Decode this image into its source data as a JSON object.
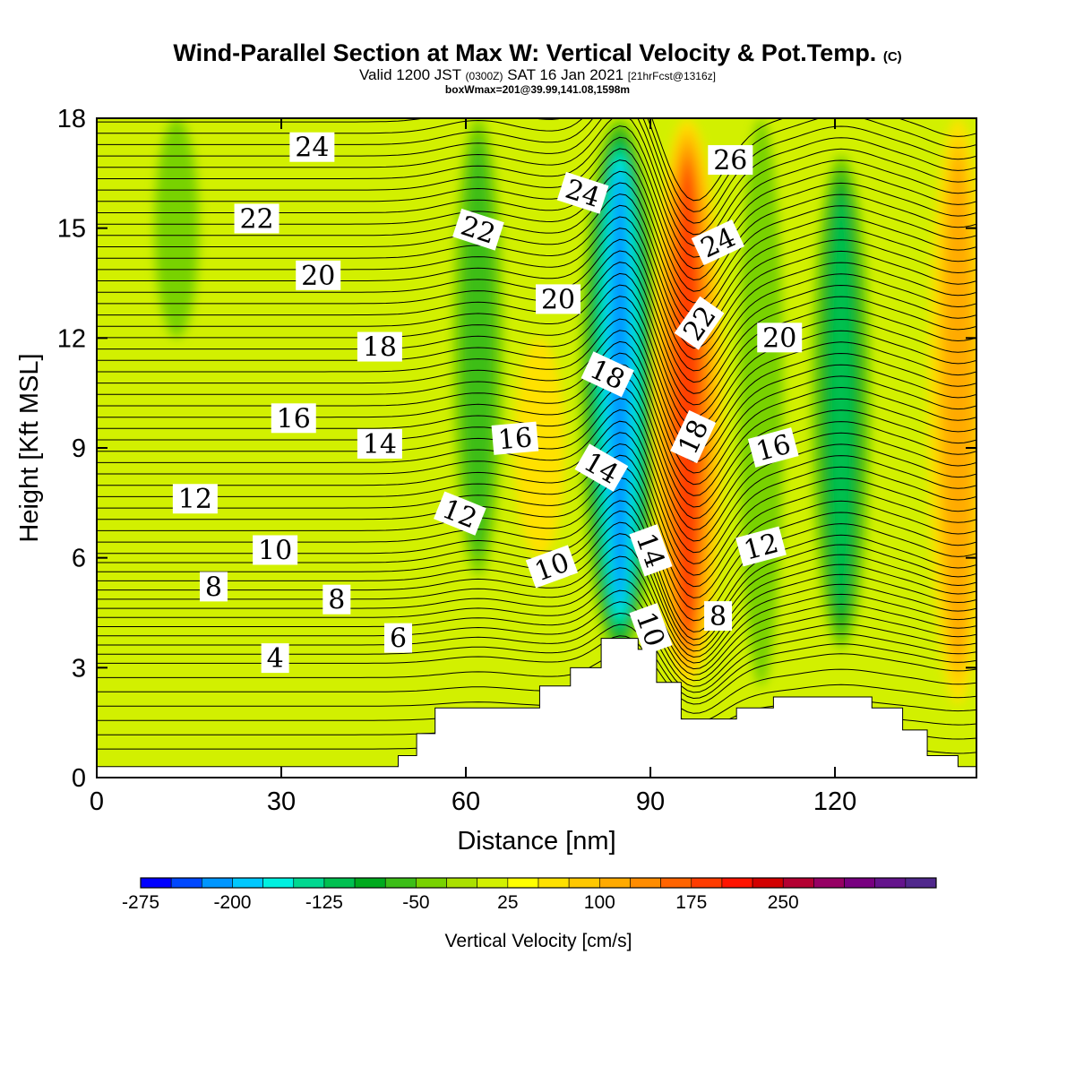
{
  "title": {
    "main": "Wind-Parallel Section at Max W: Vertical Velocity & Pot.Temp.",
    "main_mark": "(C)",
    "line2_a": "Valid 1200 JST",
    "line2_b": "(0300Z)",
    "line2_c": "SAT 16 Jan 2021",
    "line2_d": "[21hrFcst@1316z]",
    "line3": "boxWmax=201@39.99,141.08,1598m"
  },
  "chart_data": {
    "type": "heatmap",
    "xlabel": "Distance [nm]",
    "ylabel": "Height [Kft MSL]",
    "xlim": [
      0,
      143
    ],
    "ylim": [
      0,
      18
    ],
    "x_ticks": [
      0,
      30,
      60,
      90,
      120
    ],
    "y_ticks": [
      0,
      3,
      6,
      9,
      12,
      15,
      18
    ],
    "colorbar": {
      "title": "Vertical Velocity [cm/s]",
      "labels": [
        "-275",
        "-200",
        "-125",
        "-50",
        "25",
        "100",
        "175",
        "250"
      ],
      "colors": [
        "#0000ff",
        "#0048ff",
        "#0096ff",
        "#00c8ff",
        "#00f0e0",
        "#00d890",
        "#00c050",
        "#00aa1e",
        "#3cbe18",
        "#78d200",
        "#aae000",
        "#d2f000",
        "#ffff00",
        "#ffe100",
        "#ffc800",
        "#ffaa00",
        "#ff8c00",
        "#ff6400",
        "#ff3c00",
        "#ff1400",
        "#d20000",
        "#b40032",
        "#960064",
        "#780080",
        "#64148c",
        "#50288c"
      ]
    },
    "velocity_features": [
      {
        "x": 13,
        "y0": 12,
        "y1": 18,
        "value": -25
      },
      {
        "x": 62,
        "y0": 5.5,
        "y1": 18,
        "value": -60
      },
      {
        "x": 72,
        "y0": 6,
        "y1": 12,
        "value": 60
      },
      {
        "x": 85,
        "y0": 3.3,
        "y1": 18,
        "value": -220
      },
      {
        "x": 96,
        "y0": 2.5,
        "y1": 18,
        "value": 185
      },
      {
        "x": 108,
        "y0": 2.5,
        "y1": 18,
        "value": -25
      },
      {
        "x": 121,
        "y0": 3.5,
        "y1": 17,
        "value": -110
      },
      {
        "x": 140,
        "y0": 2,
        "y1": 18,
        "value": 110
      }
    ],
    "terrain_profile": [
      [
        0,
        0.3
      ],
      [
        49,
        0.6
      ],
      [
        52,
        1.2
      ],
      [
        55,
        1.9
      ],
      [
        66,
        1.9
      ],
      [
        72,
        2.5
      ],
      [
        77,
        3.0
      ],
      [
        82,
        3.8
      ],
      [
        87,
        3.8
      ],
      [
        88,
        3.5
      ],
      [
        91,
        2.6
      ],
      [
        95,
        1.6
      ],
      [
        101,
        1.6
      ],
      [
        104,
        1.9
      ],
      [
        110,
        2.2
      ],
      [
        121,
        2.2
      ],
      [
        126,
        1.9
      ],
      [
        131,
        1.3
      ],
      [
        135,
        0.6
      ],
      [
        140,
        0.3
      ]
    ],
    "isentrope_labels": [
      {
        "text": "24",
        "x": 35,
        "y": 17.2,
        "angle": 0
      },
      {
        "text": "22",
        "x": 26,
        "y": 15.25,
        "angle": 0
      },
      {
        "text": "20",
        "x": 36,
        "y": 13.7,
        "angle": 0
      },
      {
        "text": "18",
        "x": 46,
        "y": 11.75,
        "angle": 0
      },
      {
        "text": "16",
        "x": 32,
        "y": 9.8,
        "angle": 0
      },
      {
        "text": "14",
        "x": 46,
        "y": 9.1,
        "angle": 0
      },
      {
        "text": "12",
        "x": 16,
        "y": 7.6,
        "angle": 0
      },
      {
        "text": "10",
        "x": 29,
        "y": 6.2,
        "angle": 0
      },
      {
        "text": "8",
        "x": 19,
        "y": 5.2,
        "angle": 0
      },
      {
        "text": "8",
        "x": 39,
        "y": 4.85,
        "angle": 0
      },
      {
        "text": "6",
        "x": 49,
        "y": 3.8,
        "angle": 0
      },
      {
        "text": "4",
        "x": 29,
        "y": 3.25,
        "angle": 0
      },
      {
        "text": "22",
        "x": 62,
        "y": 14.95,
        "angle": 18
      },
      {
        "text": "24",
        "x": 79,
        "y": 15.95,
        "angle": 18
      },
      {
        "text": "20",
        "x": 75,
        "y": 13.05,
        "angle": 0
      },
      {
        "text": "18",
        "x": 83,
        "y": 11.0,
        "angle": 25
      },
      {
        "text": "16",
        "x": 68,
        "y": 9.25,
        "angle": -5
      },
      {
        "text": "14",
        "x": 82,
        "y": 8.45,
        "angle": 30
      },
      {
        "text": "12",
        "x": 59,
        "y": 7.2,
        "angle": 22
      },
      {
        "text": "10",
        "x": 74,
        "y": 5.75,
        "angle": -20
      },
      {
        "text": "14",
        "x": 90,
        "y": 6.2,
        "angle": 70
      },
      {
        "text": "10",
        "x": 90,
        "y": 4.05,
        "angle": 70
      },
      {
        "text": "26",
        "x": 103,
        "y": 16.85,
        "angle": 0
      },
      {
        "text": "24",
        "x": 101,
        "y": 14.6,
        "angle": -25
      },
      {
        "text": "22",
        "x": 98,
        "y": 12.4,
        "angle": -55
      },
      {
        "text": "20",
        "x": 111,
        "y": 12.0,
        "angle": 0
      },
      {
        "text": "18",
        "x": 97,
        "y": 9.3,
        "angle": -65
      },
      {
        "text": "16",
        "x": 110,
        "y": 9.0,
        "angle": -15
      },
      {
        "text": "12",
        "x": 108,
        "y": 6.3,
        "angle": -15
      },
      {
        "text": "8",
        "x": 101,
        "y": 4.4,
        "angle": 0
      }
    ]
  }
}
